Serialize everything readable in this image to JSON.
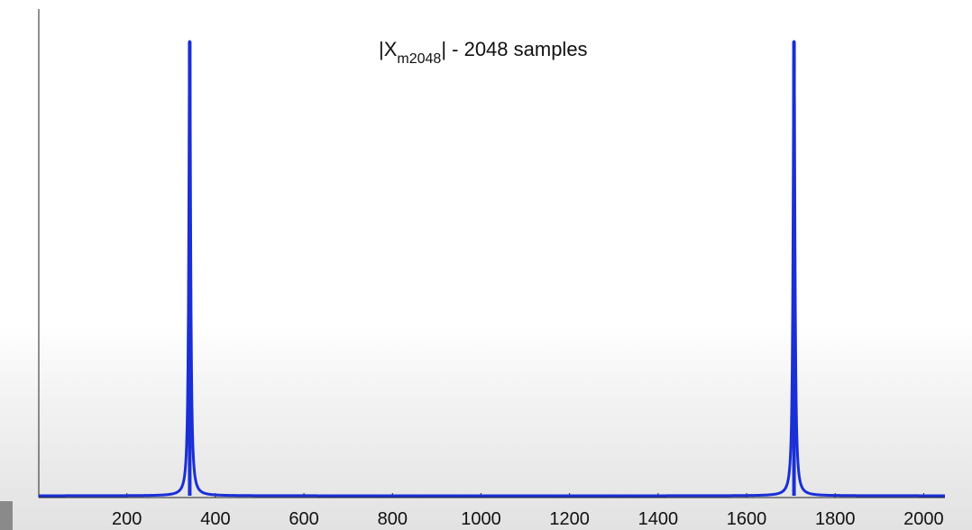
{
  "chart_data": {
    "type": "line",
    "title": {
      "prefix": "|X",
      "subscript": "m2048",
      "suffix": "| - 2048 samples"
    },
    "xlabel": "",
    "ylabel": "",
    "xlim": [
      1,
      2048
    ],
    "ylim": [
      0,
      1
    ],
    "x_ticks": [
      "200",
      "400",
      "600",
      "800",
      "1000",
      "1200",
      "1400",
      "1600",
      "1800",
      "2000"
    ],
    "grid": false,
    "series": [
      {
        "color": "#1a2fd6",
        "peaks": [
          {
            "center": 342,
            "height": 1.0,
            "width": 2.5
          },
          {
            "center": 1707,
            "height": 1.0,
            "width": 2.5
          }
        ],
        "baseline": 0.004
      }
    ]
  }
}
